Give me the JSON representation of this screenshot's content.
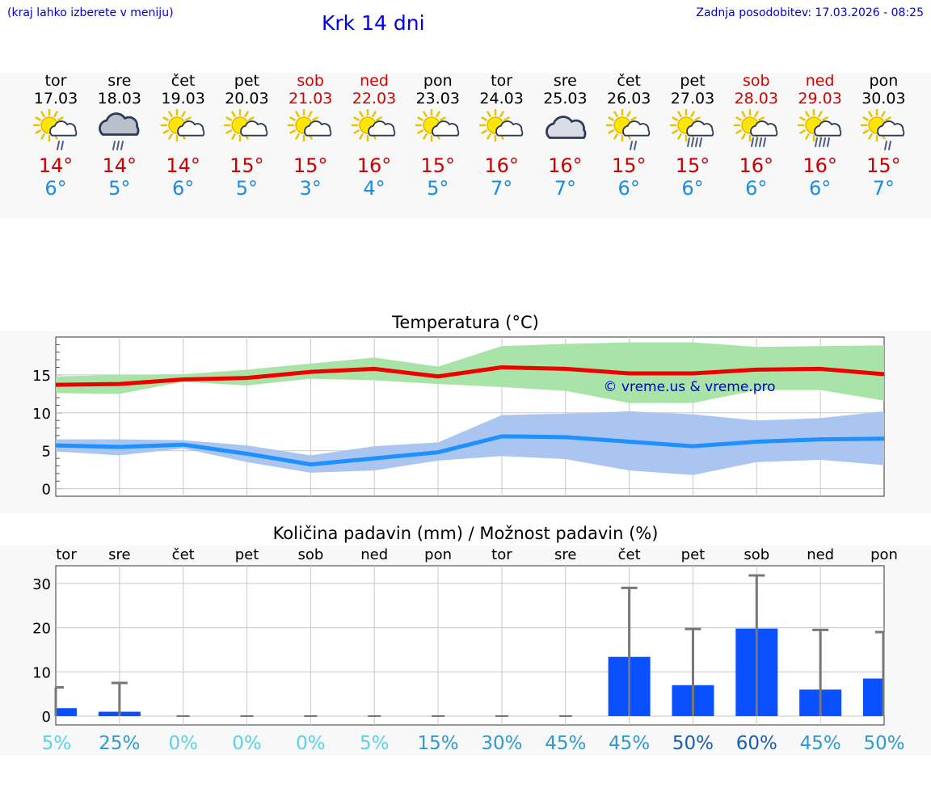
{
  "header": {
    "hint": "(kraj lahko izberete v meniju)",
    "title": "Krk 14 dni",
    "updated": "Zadnja posodobitev: 17.03.2026 - 08:25"
  },
  "days": [
    {
      "dow": "tor",
      "date": "17.03",
      "weekend": false,
      "icon": "sun-cloud-rain-icon",
      "tmax": "14°",
      "tmin": "6°"
    },
    {
      "dow": "sre",
      "date": "18.03",
      "weekend": false,
      "icon": "cloud-rain-icon",
      "tmax": "14°",
      "tmin": "5°"
    },
    {
      "dow": "čet",
      "date": "19.03",
      "weekend": false,
      "icon": "sun-cloud-icon",
      "tmax": "14°",
      "tmin": "6°"
    },
    {
      "dow": "pet",
      "date": "20.03",
      "weekend": false,
      "icon": "sun-cloud-icon",
      "tmax": "15°",
      "tmin": "5°"
    },
    {
      "dow": "sob",
      "date": "21.03",
      "weekend": true,
      "icon": "sun-cloud-icon",
      "tmax": "15°",
      "tmin": "3°"
    },
    {
      "dow": "ned",
      "date": "22.03",
      "weekend": true,
      "icon": "sun-cloud-icon",
      "tmax": "16°",
      "tmin": "4°"
    },
    {
      "dow": "pon",
      "date": "23.03",
      "weekend": false,
      "icon": "sun-cloud-icon",
      "tmax": "15°",
      "tmin": "5°"
    },
    {
      "dow": "tor",
      "date": "24.03",
      "weekend": false,
      "icon": "sun-cloud-icon",
      "tmax": "16°",
      "tmin": "7°"
    },
    {
      "dow": "sre",
      "date": "25.03",
      "weekend": false,
      "icon": "cloud-icon",
      "tmax": "16°",
      "tmin": "7°"
    },
    {
      "dow": "čet",
      "date": "26.03",
      "weekend": false,
      "icon": "sun-cloud-rain-icon",
      "tmax": "15°",
      "tmin": "6°"
    },
    {
      "dow": "pet",
      "date": "27.03",
      "weekend": false,
      "icon": "sun-cloud-heavy-rain-icon",
      "tmax": "15°",
      "tmin": "6°"
    },
    {
      "dow": "sob",
      "date": "28.03",
      "weekend": true,
      "icon": "sun-cloud-heavy-rain-icon",
      "tmax": "16°",
      "tmin": "6°"
    },
    {
      "dow": "ned",
      "date": "29.03",
      "weekend": true,
      "icon": "sun-cloud-heavy-rain-icon",
      "tmax": "16°",
      "tmin": "6°"
    },
    {
      "dow": "pon",
      "date": "30.03",
      "weekend": false,
      "icon": "sun-cloud-rain-icon",
      "tmax": "15°",
      "tmin": "7°"
    }
  ],
  "chart_data": [
    {
      "type": "line",
      "title": "Temperatura (°C)",
      "x_categories": [
        "17.03",
        "18.03",
        "19.03",
        "20.03",
        "21.03",
        "22.03",
        "23.03",
        "24.03",
        "25.03",
        "26.03",
        "27.03",
        "28.03",
        "29.03",
        "30.03"
      ],
      "ylim": [
        -1,
        20
      ],
      "yticks": [
        0,
        5,
        10,
        15
      ],
      "grid": true,
      "watermark": "© vreme.us & vreme.pro",
      "series": [
        {
          "name": "max",
          "color": "#ee0000",
          "values": [
            13.7,
            13.8,
            14.4,
            14.6,
            15.4,
            15.8,
            14.8,
            16.0,
            15.8,
            15.2,
            15.2,
            15.7,
            15.8,
            15.1
          ]
        },
        {
          "name": "min",
          "color": "#1e90ff",
          "values": [
            5.7,
            5.5,
            5.8,
            4.6,
            3.2,
            4.0,
            4.8,
            6.9,
            6.8,
            6.2,
            5.6,
            6.2,
            6.5,
            6.6
          ]
        }
      ],
      "bands": [
        {
          "name": "max range",
          "color": "#a8e4a8",
          "upper": [
            14.8,
            15.0,
            15.1,
            15.7,
            16.5,
            17.3,
            16.1,
            18.8,
            19.1,
            19.3,
            19.3,
            18.7,
            18.8,
            18.9
          ],
          "lower": [
            12.6,
            12.5,
            14.1,
            13.6,
            14.5,
            14.3,
            13.8,
            13.4,
            12.9,
            11.3,
            11.3,
            13.0,
            13.0,
            11.6
          ]
        },
        {
          "name": "min range",
          "color": "#aac6f0",
          "upper": [
            6.5,
            6.5,
            6.4,
            5.7,
            4.4,
            5.6,
            6.1,
            9.7,
            9.9,
            10.2,
            9.8,
            9.0,
            9.3,
            10.2
          ],
          "lower": [
            4.9,
            4.4,
            5.3,
            3.5,
            2.1,
            2.4,
            3.7,
            4.3,
            3.9,
            2.4,
            1.8,
            3.5,
            3.8,
            3.1
          ]
        }
      ]
    },
    {
      "type": "bar",
      "title": "Količina padavin (mm) / Možnost padavin (%)",
      "categories": [
        "tor",
        "sre",
        "čet",
        "pet",
        "sob",
        "ned",
        "pon",
        "tor",
        "sre",
        "čet",
        "pet",
        "sob",
        "ned",
        "pon"
      ],
      "ylim": [
        -2,
        34
      ],
      "yticks": [
        0,
        10,
        20,
        30
      ],
      "grid": true,
      "bar_color": "#0a50ff",
      "values": [
        1.8,
        1.0,
        0,
        0,
        0,
        0,
        0,
        0,
        0,
        13.4,
        7.0,
        19.8,
        6.0,
        8.5
      ],
      "error_max": [
        6.5,
        7.5,
        0,
        0,
        0,
        0,
        0,
        0,
        0,
        29.0,
        19.7,
        31.8,
        19.5,
        19.0
      ],
      "probability": [
        "5%",
        "25%",
        "0%",
        "0%",
        "0%",
        "5%",
        "15%",
        "30%",
        "45%",
        "45%",
        "50%",
        "60%",
        "45%",
        "50%"
      ],
      "probability_colors": [
        "#5ad2e6",
        "#2e9ad2",
        "#5ad2e6",
        "#5ad2e6",
        "#5ad2e6",
        "#5ad2e6",
        "#2e9ad2",
        "#2e9ad2",
        "#2e9ad2",
        "#2e9ad2",
        "#1560b4",
        "#1560b4",
        "#2e9ad2",
        "#2e9ad2"
      ]
    }
  ]
}
